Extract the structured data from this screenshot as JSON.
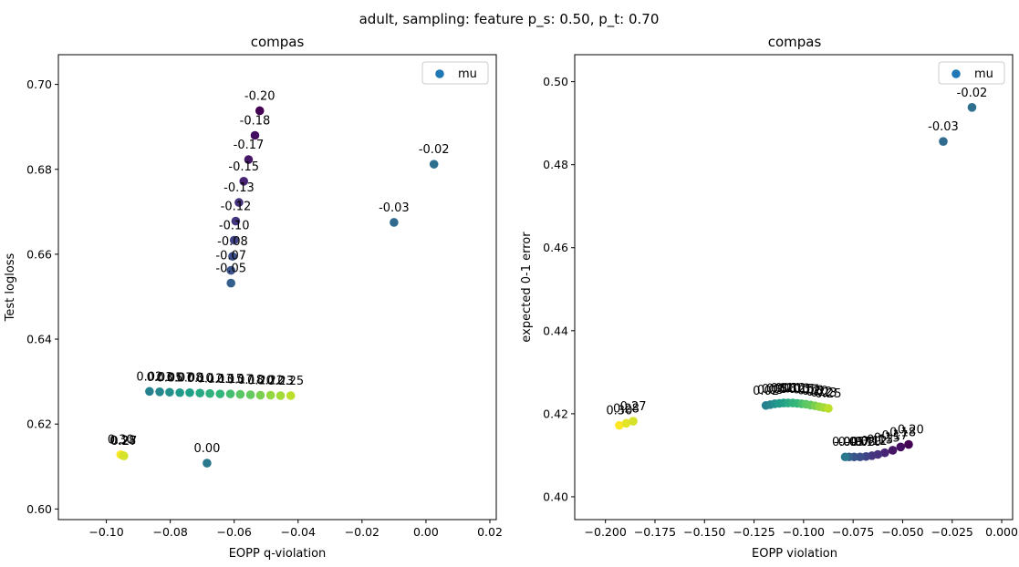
{
  "figure": {
    "suptitle": "adult, sampling: feature p_s: 0.50, p_t: 0.70"
  },
  "chart_data": [
    {
      "type": "scatter",
      "title": "compas",
      "xlabel": "EOPP q-violation",
      "ylabel": "Test logloss",
      "xlim": [
        -0.115,
        0.022
      ],
      "ylim": [
        0.5975,
        0.707
      ],
      "xticks": [
        -0.1,
        -0.08,
        -0.06,
        -0.04,
        -0.02,
        0.0,
        0.02
      ],
      "xtick_labels": [
        "−0.10",
        "−0.08",
        "−0.06",
        "−0.04",
        "−0.02",
        "0.00",
        "0.02"
      ],
      "yticks": [
        0.6,
        0.62,
        0.64,
        0.66,
        0.68,
        0.7
      ],
      "ytick_labels": [
        "0.60",
        "0.62",
        "0.64",
        "0.66",
        "0.68",
        "0.70"
      ],
      "grid": false,
      "legend": {
        "location": "top-right",
        "entries": [
          "mu"
        ]
      },
      "points": [
        {
          "x": -0.052,
          "y": 0.6938,
          "label": "-0.20",
          "c": -0.2
        },
        {
          "x": -0.0535,
          "y": 0.688,
          "label": "-0.18",
          "c": -0.18
        },
        {
          "x": -0.0555,
          "y": 0.6823,
          "label": "-0.17",
          "c": -0.17
        },
        {
          "x": -0.057,
          "y": 0.6772,
          "label": "-0.15",
          "c": -0.15
        },
        {
          "x": -0.0585,
          "y": 0.6722,
          "label": "-0.13",
          "c": -0.13
        },
        {
          "x": -0.0595,
          "y": 0.6678,
          "label": "-0.12",
          "c": -0.12
        },
        {
          "x": -0.06,
          "y": 0.6633,
          "label": "-0.10",
          "c": -0.1
        },
        {
          "x": -0.0605,
          "y": 0.6595,
          "label": "-0.08",
          "c": -0.08
        },
        {
          "x": -0.061,
          "y": 0.6562,
          "label": "-0.07",
          "c": -0.07
        },
        {
          "x": -0.061,
          "y": 0.6532,
          "label": "-0.05",
          "c": -0.05
        },
        {
          "x": 0.0025,
          "y": 0.6812,
          "label": "-0.02",
          "c": -0.02
        },
        {
          "x": -0.01,
          "y": 0.6675,
          "label": "-0.03",
          "c": -0.03
        },
        {
          "x": -0.0685,
          "y": 0.6108,
          "label": "0.00",
          "c": 0.0
        },
        {
          "x": -0.0865,
          "y": 0.6277,
          "label": "0.02",
          "c": 0.02
        },
        {
          "x": -0.0833,
          "y": 0.6276,
          "label": "0.03",
          "c": 0.03
        },
        {
          "x": -0.0802,
          "y": 0.6275,
          "label": "0.05",
          "c": 0.05
        },
        {
          "x": -0.077,
          "y": 0.6274,
          "label": "0.07",
          "c": 0.07
        },
        {
          "x": -0.0739,
          "y": 0.6274,
          "label": "0.08",
          "c": 0.08
        },
        {
          "x": -0.0707,
          "y": 0.6273,
          "label": "0.10",
          "c": 0.1
        },
        {
          "x": -0.0676,
          "y": 0.6272,
          "label": "0.12",
          "c": 0.12
        },
        {
          "x": -0.0644,
          "y": 0.6271,
          "label": "0.13",
          "c": 0.13
        },
        {
          "x": -0.0612,
          "y": 0.6271,
          "label": "0.15",
          "c": 0.15
        },
        {
          "x": -0.0581,
          "y": 0.627,
          "label": "0.17",
          "c": 0.17
        },
        {
          "x": -0.0549,
          "y": 0.6269,
          "label": "0.18",
          "c": 0.18
        },
        {
          "x": -0.0518,
          "y": 0.6268,
          "label": "0.20",
          "c": 0.2
        },
        {
          "x": -0.0486,
          "y": 0.6268,
          "label": "0.22",
          "c": 0.22
        },
        {
          "x": -0.0455,
          "y": 0.6267,
          "label": "0.23",
          "c": 0.23
        },
        {
          "x": -0.0423,
          "y": 0.6267,
          "label": "0.25",
          "c": 0.25
        },
        {
          "x": -0.0955,
          "y": 0.6128,
          "label": "0.30",
          "c": 0.3
        },
        {
          "x": -0.0948,
          "y": 0.6126,
          "label": "0.28",
          "c": 0.28
        },
        {
          "x": -0.0945,
          "y": 0.6125,
          "label": "0.27",
          "c": 0.27
        }
      ]
    },
    {
      "type": "scatter",
      "title": "compas",
      "xlabel": "EOPP violation",
      "ylabel": "expected 0-1 error",
      "xlim": [
        -0.2155,
        0.0055
      ],
      "ylim": [
        0.3945,
        0.5065
      ],
      "xticks": [
        -0.2,
        -0.175,
        -0.15,
        -0.125,
        -0.1,
        -0.075,
        -0.05,
        -0.025,
        0.0
      ],
      "xtick_labels": [
        "−0.200",
        "−0.175",
        "−0.150",
        "−0.125",
        "−0.100",
        "−0.075",
        "−0.050",
        "−0.025",
        "0.000"
      ],
      "yticks": [
        0.4,
        0.42,
        0.44,
        0.46,
        0.48,
        0.5
      ],
      "ytick_labels": [
        "0.40",
        "0.42",
        "0.44",
        "0.46",
        "0.48",
        "0.50"
      ],
      "grid": false,
      "legend": {
        "location": "top-right",
        "entries": [
          "mu"
        ]
      },
      "points": [
        {
          "x": -0.015,
          "y": 0.4938,
          "label": "-0.02",
          "c": -0.02
        },
        {
          "x": -0.0295,
          "y": 0.4856,
          "label": "-0.03",
          "c": -0.03
        },
        {
          "x": -0.047,
          "y": 0.4126,
          "label": "-0.20",
          "c": -0.2
        },
        {
          "x": -0.051,
          "y": 0.412,
          "label": "-0.18",
          "c": -0.18
        },
        {
          "x": -0.055,
          "y": 0.4112,
          "label": "-0.17",
          "c": -0.17
        },
        {
          "x": -0.059,
          "y": 0.4106,
          "label": "-0.15",
          "c": -0.15
        },
        {
          "x": -0.0625,
          "y": 0.4102,
          "label": "-0.13",
          "c": -0.13
        },
        {
          "x": -0.0655,
          "y": 0.4099,
          "label": "-0.12",
          "c": -0.12
        },
        {
          "x": -0.0685,
          "y": 0.4097,
          "label": "-0.10",
          "c": -0.1
        },
        {
          "x": -0.0715,
          "y": 0.4096,
          "label": "-0.08",
          "c": -0.08
        },
        {
          "x": -0.0745,
          "y": 0.4096,
          "label": "-0.07",
          "c": -0.07
        },
        {
          "x": -0.077,
          "y": 0.4096,
          "label": "-0.05",
          "c": -0.05
        },
        {
          "x": -0.079,
          "y": 0.4096,
          "label": "0.00",
          "c": 0.0
        },
        {
          "x": -0.119,
          "y": 0.422,
          "label": "0.02",
          "c": 0.02
        },
        {
          "x": -0.1168,
          "y": 0.4222,
          "label": "0.03",
          "c": 0.03
        },
        {
          "x": -0.1145,
          "y": 0.4224,
          "label": "0.05",
          "c": 0.05
        },
        {
          "x": -0.1122,
          "y": 0.4225,
          "label": "0.07",
          "c": 0.07
        },
        {
          "x": -0.11,
          "y": 0.4226,
          "label": "0.08",
          "c": 0.08
        },
        {
          "x": -0.1078,
          "y": 0.4226,
          "label": "0.10",
          "c": 0.1
        },
        {
          "x": -0.1055,
          "y": 0.4226,
          "label": "0.12",
          "c": 0.12
        },
        {
          "x": -0.1032,
          "y": 0.4225,
          "label": "0.13",
          "c": 0.13
        },
        {
          "x": -0.101,
          "y": 0.4224,
          "label": "0.15",
          "c": 0.15
        },
        {
          "x": -0.0988,
          "y": 0.4223,
          "label": "0.17",
          "c": 0.17
        },
        {
          "x": -0.0965,
          "y": 0.4221,
          "label": "0.18",
          "c": 0.18
        },
        {
          "x": -0.0942,
          "y": 0.4219,
          "label": "0.20",
          "c": 0.2
        },
        {
          "x": -0.092,
          "y": 0.4217,
          "label": "0.22",
          "c": 0.22
        },
        {
          "x": -0.0898,
          "y": 0.4215,
          "label": "0.23",
          "c": 0.23
        },
        {
          "x": -0.0875,
          "y": 0.4213,
          "label": "0.25",
          "c": 0.25
        },
        {
          "x": -0.193,
          "y": 0.4172,
          "label": "0.30",
          "c": 0.3
        },
        {
          "x": -0.1895,
          "y": 0.4177,
          "label": "0.28",
          "c": 0.28
        },
        {
          "x": -0.186,
          "y": 0.4182,
          "label": "0.27",
          "c": 0.27
        }
      ]
    }
  ]
}
